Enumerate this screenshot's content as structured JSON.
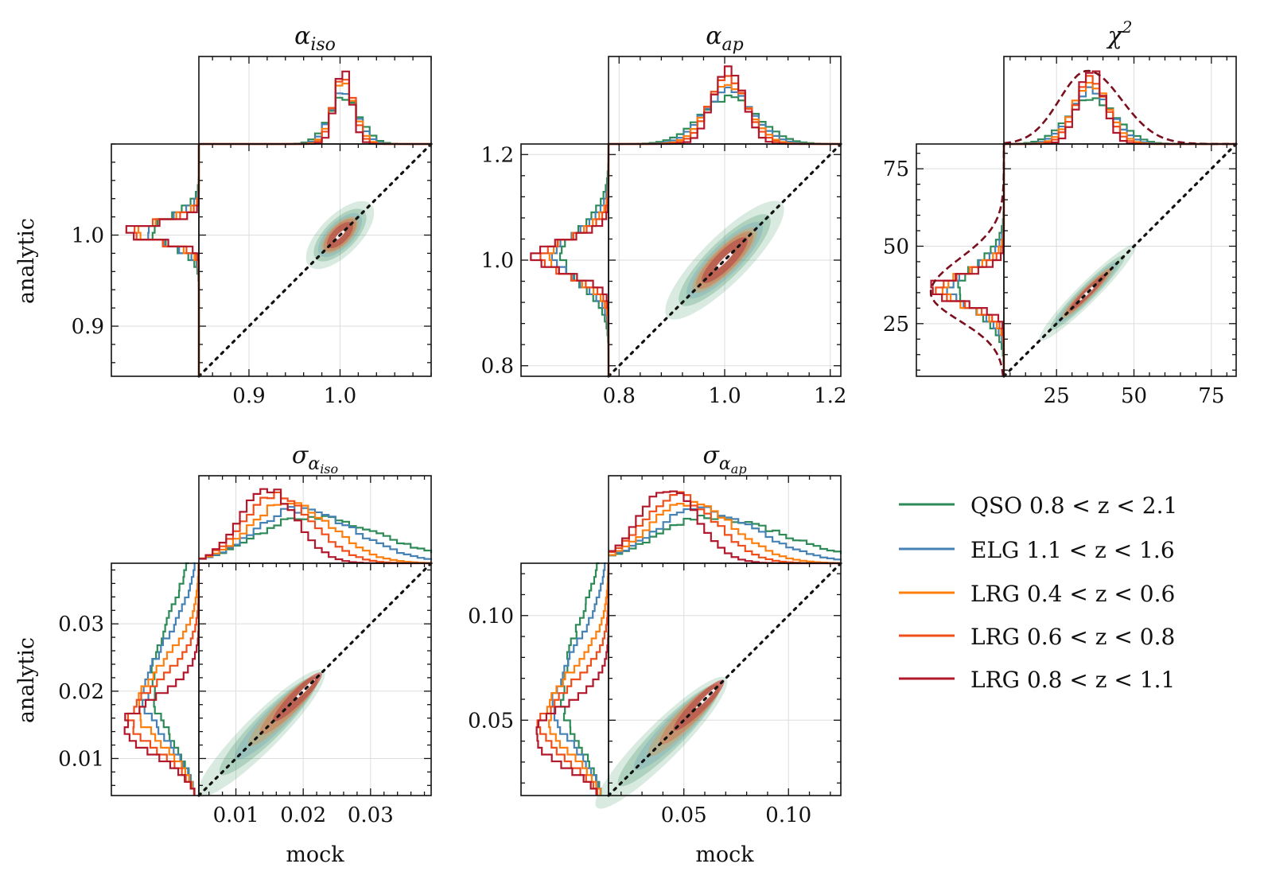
{
  "figure": {
    "ylabel_left": "analytic",
    "xlabel_bottom": "mock"
  },
  "colors": {
    "QSO": "#2e8b57",
    "ELG": "#4682b4",
    "LRG04": "#ff7f0e",
    "LRG06": "#f04e1a",
    "LRG08": "#b2182b"
  },
  "chart_data": [
    {
      "type": "scatter",
      "id": "alpha_iso",
      "title": "α_iso",
      "title_main": "α",
      "title_sub": "iso",
      "xlabel": "",
      "ylabel": "analytic",
      "xlim": [
        0.845,
        1.1
      ],
      "ylim": [
        0.845,
        1.1
      ],
      "xticks": [
        "0.9",
        "1.0"
      ],
      "xtick_values": [
        0.9,
        1.0
      ],
      "yticks": [
        "0.9",
        "1.0"
      ],
      "ytick_values": [
        0.9,
        1.0
      ],
      "center": 1.0,
      "spread": 0.022,
      "width": 0.01,
      "one_to_one_line": true
    },
    {
      "type": "scatter",
      "id": "alpha_ap",
      "title": "α_ap",
      "title_main": "α",
      "title_sub": "ap",
      "xlabel": "",
      "ylabel": "",
      "xlim": [
        0.78,
        1.22
      ],
      "ylim": [
        0.78,
        1.22
      ],
      "xticks": [
        "0.8",
        "1.0",
        "1.2"
      ],
      "xtick_values": [
        0.8,
        1.0,
        1.2
      ],
      "yticks": [
        "0.8",
        "1.0",
        "1.2"
      ],
      "ytick_values": [
        0.8,
        1.0,
        1.2
      ],
      "center": 1.0,
      "spread": 0.07,
      "width": 0.02,
      "one_to_one_line": true
    },
    {
      "type": "scatter",
      "id": "chi2",
      "title": "χ²",
      "title_main": "χ",
      "title_sup": "2",
      "xlabel": "",
      "ylabel": "",
      "xlim": [
        8,
        83
      ],
      "ylim": [
        8,
        83
      ],
      "xticks": [
        "25",
        "50",
        "75"
      ],
      "xtick_values": [
        25,
        50,
        75
      ],
      "yticks": [
        "25",
        "50",
        "75"
      ],
      "ytick_values": [
        25,
        50,
        75
      ],
      "center": 35,
      "spread": 10,
      "width": 1.5,
      "one_to_one_line": true
    },
    {
      "type": "scatter",
      "id": "sigma_alpha_iso",
      "title": "σ_α_iso",
      "title_main": "σ",
      "title_sub": "α",
      "title_subsub": "iso",
      "xlabel": "mock",
      "ylabel": "analytic",
      "xlim": [
        0.0045,
        0.039
      ],
      "ylim": [
        0.0045,
        0.039
      ],
      "xticks": [
        "0.01",
        "0.02",
        "0.03"
      ],
      "xtick_values": [
        0.01,
        0.02,
        0.03
      ],
      "yticks": [
        "0.01",
        "0.02",
        "0.03"
      ],
      "ytick_values": [
        0.01,
        0.02,
        0.03
      ],
      "center": 0.017,
      "spread": 0.006,
      "width": 0.0012,
      "one_to_one_line": true
    },
    {
      "type": "scatter",
      "id": "sigma_alpha_ap",
      "title": "σ_α_ap",
      "title_main": "σ",
      "title_sub": "α",
      "title_subsub": "ap",
      "xlabel": "mock",
      "ylabel": "",
      "xlim": [
        0.014,
        0.125
      ],
      "ylim": [
        0.014,
        0.125
      ],
      "xticks": [
        "0.05",
        "0.10"
      ],
      "xtick_values": [
        0.05,
        0.1
      ],
      "yticks": [
        "0.05",
        "0.10"
      ],
      "ytick_values": [
        0.05,
        0.1
      ],
      "center": 0.05,
      "spread": 0.02,
      "width": 0.004,
      "one_to_one_line": true
    }
  ],
  "legend": {
    "items": [
      {
        "key": "QSO",
        "label": "QSO 0.8 < z < 2.1"
      },
      {
        "key": "ELG",
        "label": "ELG 1.1 < z < 1.6"
      },
      {
        "key": "LRG04",
        "label": "LRG 0.4 < z < 0.6"
      },
      {
        "key": "LRG06",
        "label": "LRG 0.6 < z < 0.8"
      },
      {
        "key": "LRG08",
        "label": "LRG 0.8 < z < 1.1"
      }
    ]
  }
}
